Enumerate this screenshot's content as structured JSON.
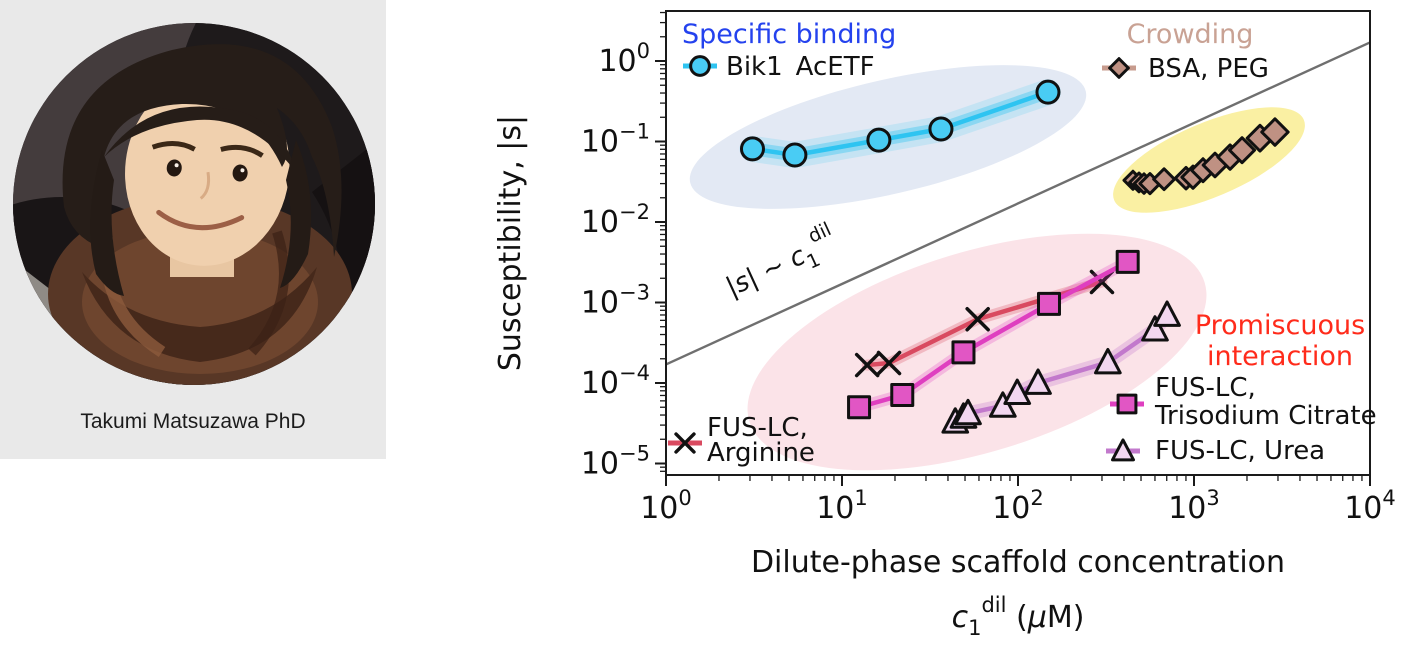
{
  "profile": {
    "name": "Takumi Matsuzawa PhD",
    "card_bg": "#e9e9e9"
  },
  "chart_data": {
    "type": "scatter",
    "x_scale": "log",
    "y_scale": "log",
    "xlabel": "Dilute-phase scaffold concentration",
    "xlabel_symbol_parts": [
      {
        "t": "c",
        "pos": "base",
        "italic": true
      },
      {
        "t": "1",
        "pos": "sub"
      },
      {
        "t": "dil",
        "pos": "sup"
      },
      {
        "t": " (",
        "pos": "base"
      },
      {
        "t": "μ",
        "pos": "base",
        "italic": true
      },
      {
        "t": "M)",
        "pos": "base"
      }
    ],
    "ylabel": "Susceptibility, |s|",
    "xlim": [
      1,
      10000
    ],
    "ylim": [
      7.2e-06,
      4.2
    ],
    "x_tick_exponents": [
      0,
      1,
      2,
      3,
      4
    ],
    "y_tick_exponents": [
      0,
      -1,
      -2,
      -3,
      -4,
      -5
    ],
    "grid": false,
    "guide_line": {
      "relation": "|s| ~ c1^dil",
      "slope_loglog": 1,
      "coefficient": 0.00017,
      "color": "#6f6f6f",
      "label_parts": [
        {
          "t": "|s| ~ ",
          "pos": "base",
          "italic": true
        },
        {
          "t": "c",
          "pos": "base",
          "italic": true
        },
        {
          "t": "1",
          "pos": "sub"
        },
        {
          "t": "dil",
          "pos": "sup"
        }
      ]
    },
    "groups": [
      {
        "title": "Specific binding",
        "color": "#2442ee",
        "region_fill": "#e3e9f4"
      },
      {
        "title": "Crowding",
        "color": "#c9a294",
        "region_fill": "#faf0a3"
      },
      {
        "title": "Promiscuous interaction",
        "title_lines": [
          "Promiscuous",
          "interaction"
        ],
        "color": "#ff2b1b",
        "region_fill": "#fbe3e8"
      }
    ],
    "series": [
      {
        "name": "Bik1 AcETF",
        "group": "Specific binding",
        "marker": "circle",
        "line_color": "#2ec4f1",
        "marker_fill": "#49ccf4",
        "legend_lines": [
          "Bik1 AcETF"
        ],
        "x": [
          3.1,
          5.4,
          16.2,
          36.5,
          148
        ],
        "y": [
          0.081,
          0.068,
          0.104,
          0.143,
          0.41
        ]
      },
      {
        "name": "BSA, PEG",
        "group": "Crowding",
        "marker": "diamond",
        "line_color": "#c79b8d",
        "marker_fill": "#bf9183",
        "legend_lines": [
          "BSA, PEG"
        ],
        "x": [
          450,
          487,
          520,
          562,
          676,
          901,
          987,
          1125,
          1316,
          1603,
          1875,
          2371,
          2884
        ],
        "y": [
          0.033,
          0.031,
          0.03,
          0.03,
          0.034,
          0.035,
          0.036,
          0.044,
          0.051,
          0.064,
          0.078,
          0.11,
          0.131
        ]
      },
      {
        "name": "FUS-LC, Arginine",
        "group": "Promiscuous interaction",
        "marker": "x",
        "line_color": "#d94a60",
        "marker_fill": "#111111",
        "legend_lines": [
          "FUS-LC,",
          "Arginine"
        ],
        "x": [
          13.9,
          18.5,
          59,
          300
        ],
        "y": [
          0.000167,
          0.000177,
          0.00062,
          0.0018
        ]
      },
      {
        "name": "FUS-LC, Trisodium Citrate",
        "group": "Promiscuous interaction",
        "marker": "square",
        "line_color": "#df3fc0",
        "marker_fill": "#e156c4",
        "legend_lines": [
          "FUS-LC,",
          "Trisodium Citrate"
        ],
        "x": [
          12.5,
          22,
          49,
          150,
          420
        ],
        "y": [
          5e-05,
          7.1e-05,
          0.00024,
          0.00096,
          0.0032
        ]
      },
      {
        "name": "FUS-LC, Urea",
        "group": "Promiscuous interaction",
        "marker": "triangle",
        "line_color": "#c279cc",
        "marker_fill": "#f2d7f0",
        "legend_lines": [
          "FUS-LC, Urea"
        ],
        "x": [
          44,
          49,
          52,
          82,
          99,
          130,
          324,
          600,
          703
        ],
        "y": [
          3.3e-05,
          3.8e-05,
          4.2e-05,
          5.2e-05,
          7.5e-05,
          0.0001,
          0.00018,
          0.00046,
          0.0007
        ]
      }
    ]
  }
}
